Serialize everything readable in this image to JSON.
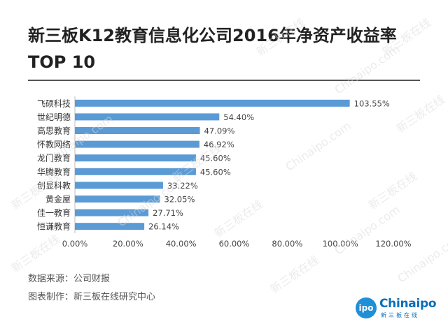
{
  "title_line1": "新三板K12教育信息化公司2016年净资产收益率",
  "title_line2": "TOP 10",
  "footer": {
    "source": "数据来源：公司财报",
    "maker": "图表制作：新三板在线研究中心"
  },
  "logo": {
    "circle_text": "ipo",
    "text": "Chinaipo",
    "sub": "新三板在线"
  },
  "watermark": {
    "text_cn": "新三板在线",
    "text_en": "Chinaipo.com"
  },
  "chart_data": {
    "type": "bar",
    "orientation": "horizontal",
    "categories": [
      "飞硕科技",
      "世纪明德",
      "高思教育",
      "怀教网络",
      "龙门教育",
      "华腾教育",
      "创显科教",
      "黄金屋",
      "佳一教育",
      "恒谦教育"
    ],
    "values": [
      103.55,
      54.4,
      47.09,
      46.92,
      45.6,
      45.6,
      33.22,
      32.05,
      27.71,
      26.14
    ],
    "value_labels": [
      "103.55%",
      "54.40%",
      "47.09%",
      "46.92%",
      "45.60%",
      "45.60%",
      "33.22%",
      "32.05%",
      "27.71%",
      "26.14%"
    ],
    "xlim": [
      0,
      120
    ],
    "x_ticks": [
      0,
      20,
      40,
      60,
      80,
      100,
      120
    ],
    "x_tick_labels": [
      "0.00%",
      "20.00%",
      "40.00%",
      "60.00%",
      "80.00%",
      "100.00%",
      "120.00%"
    ],
    "grid": false,
    "bar_color": "#5b9bd5"
  }
}
